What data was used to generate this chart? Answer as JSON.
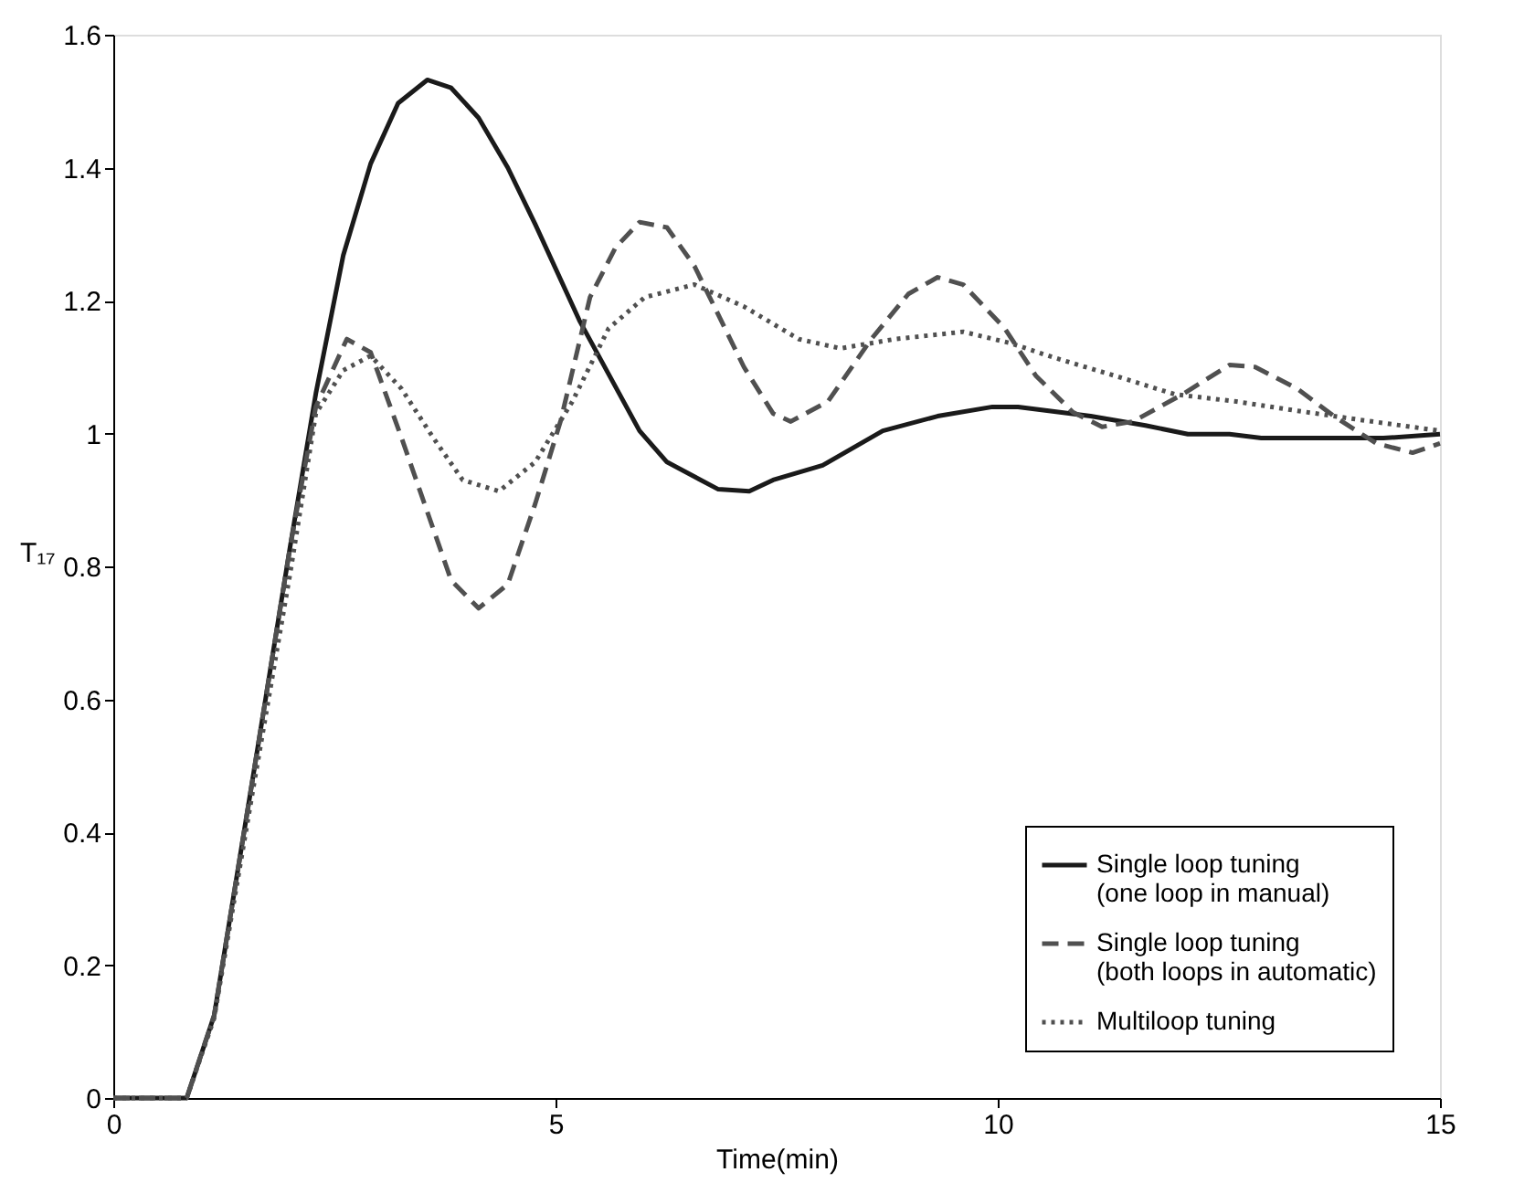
{
  "chart_data": {
    "type": "line",
    "xlabel": "Time(min)",
    "ylabel": "T₁₇",
    "xlim": [
      0,
      15
    ],
    "xticks": [
      0,
      5,
      10,
      15
    ],
    "ylim": [
      0,
      1.6
    ],
    "yticks": [
      0,
      0.2,
      0.4,
      0.6,
      0.8,
      1,
      1.2,
      1.4,
      1.6
    ],
    "grid": false,
    "legend": "bottom right",
    "marker": "none",
    "series": [
      {
        "name": "Single loop tuning\n(one loop in manual)",
        "color": "#1a1a1a",
        "line_style": "solid",
        "x": [
          0,
          0.83,
          1.14,
          1.6,
          2.0,
          2.29,
          2.6,
          2.91,
          3.22,
          3.55,
          3.82,
          4.13,
          4.46,
          4.77,
          5.27,
          5.95,
          6.26,
          6.84,
          7.19,
          7.46,
          8.02,
          8.7,
          9.32,
          9.94,
          10.23,
          11.05,
          11.67,
          12.15,
          12.62,
          12.98,
          14.36,
          15
        ],
        "values": [
          0,
          0,
          0.124,
          0.5,
          0.83,
          1.06,
          1.268,
          1.406,
          1.497,
          1.532,
          1.52,
          1.475,
          1.4,
          1.315,
          1.17,
          1.004,
          0.957,
          0.916,
          0.913,
          0.93,
          0.952,
          1.004,
          1.026,
          1.04,
          1.04,
          1.026,
          1.012,
          0.999,
          0.999,
          0.993,
          0.993,
          0.999
        ]
      },
      {
        "name": "Single loop tuning\n(both loops in automatic)",
        "color": "#505050",
        "line_style": "dashed",
        "x": [
          0,
          0.83,
          1.14,
          1.6,
          2.0,
          2.29,
          2.64,
          2.91,
          3.26,
          3.82,
          4.13,
          4.46,
          4.77,
          5.06,
          5.39,
          5.68,
          5.95,
          6.26,
          6.57,
          7.13,
          7.46,
          7.66,
          8.08,
          8.57,
          8.99,
          9.32,
          9.61,
          10.08,
          10.43,
          10.85,
          11.18,
          11.53,
          12.09,
          12.62,
          12.91,
          13.39,
          13.8,
          14.28,
          14.69,
          15
        ],
        "values": [
          0,
          0,
          0.124,
          0.5,
          0.83,
          1.04,
          1.142,
          1.122,
          0.993,
          0.779,
          0.737,
          0.773,
          0.894,
          1.02,
          1.205,
          1.28,
          1.318,
          1.31,
          1.252,
          1.1,
          1.03,
          1.018,
          1.048,
          1.142,
          1.21,
          1.235,
          1.224,
          1.158,
          1.087,
          1.032,
          1.01,
          1.018,
          1.059,
          1.103,
          1.1,
          1.067,
          1.026,
          0.985,
          0.971,
          0.985
        ]
      },
      {
        "name": "Multiloop tuning",
        "color": "#505050",
        "line_style": "dotted",
        "x": [
          0,
          0.83,
          1.14,
          1.6,
          2.0,
          2.29,
          2.6,
          2.91,
          3.26,
          3.62,
          3.95,
          4.36,
          4.77,
          5.19,
          5.6,
          6.01,
          6.57,
          7.13,
          7.75,
          8.22,
          8.84,
          9.61,
          10.14,
          10.64,
          11.32,
          12.0,
          12.7,
          13.39,
          14.07,
          15
        ],
        "values": [
          0,
          0,
          0.12,
          0.48,
          0.79,
          1.03,
          1.095,
          1.117,
          1.067,
          0.993,
          0.93,
          0.913,
          0.957,
          1.048,
          1.158,
          1.205,
          1.224,
          1.191,
          1.142,
          1.128,
          1.142,
          1.153,
          1.136,
          1.114,
          1.087,
          1.059,
          1.048,
          1.034,
          1.021,
          1.004
        ]
      }
    ]
  }
}
